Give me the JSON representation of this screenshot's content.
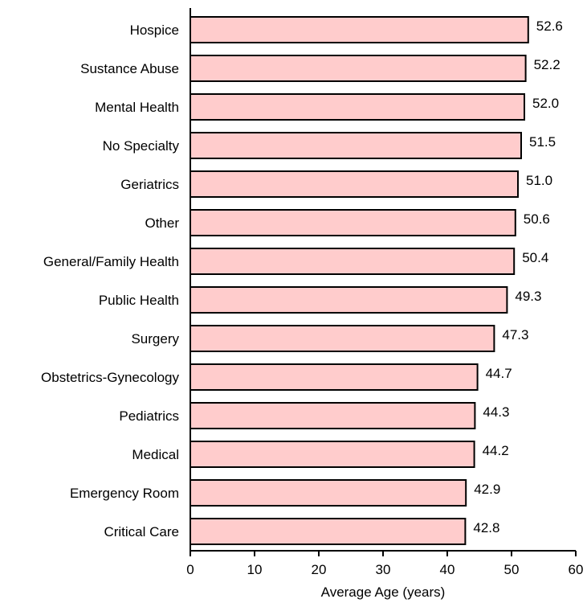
{
  "chart_data": {
    "type": "bar",
    "orientation": "horizontal",
    "categories": [
      "Hospice",
      "Sustance Abuse",
      "Mental Health",
      "No Specialty",
      "Geriatrics",
      "Other",
      "General/Family Health",
      "Public Health",
      "Surgery",
      "Obstetrics-Gynecology",
      "Pediatrics",
      "Medical",
      "Emergency Room",
      "Critical Care"
    ],
    "values": [
      52.6,
      52.2,
      52.0,
      51.5,
      51.0,
      50.6,
      50.4,
      49.3,
      47.3,
      44.7,
      44.3,
      44.2,
      42.9,
      42.8
    ],
    "value_labels": [
      "52.6",
      "52.2",
      "52.0",
      "51.5",
      "51.0",
      "50.6",
      "50.4",
      "49.3",
      "47.3",
      "44.7",
      "44.3",
      "44.2",
      "42.9",
      "42.8"
    ],
    "xlabel": "Average Age (years)",
    "ylabel": "",
    "xlim": [
      0,
      60
    ],
    "xticks": [
      "0",
      "10",
      "20",
      "30",
      "40",
      "50",
      "60"
    ],
    "grid": false,
    "bar_color": "#ffcccc",
    "bar_edge_color": "#000000"
  }
}
